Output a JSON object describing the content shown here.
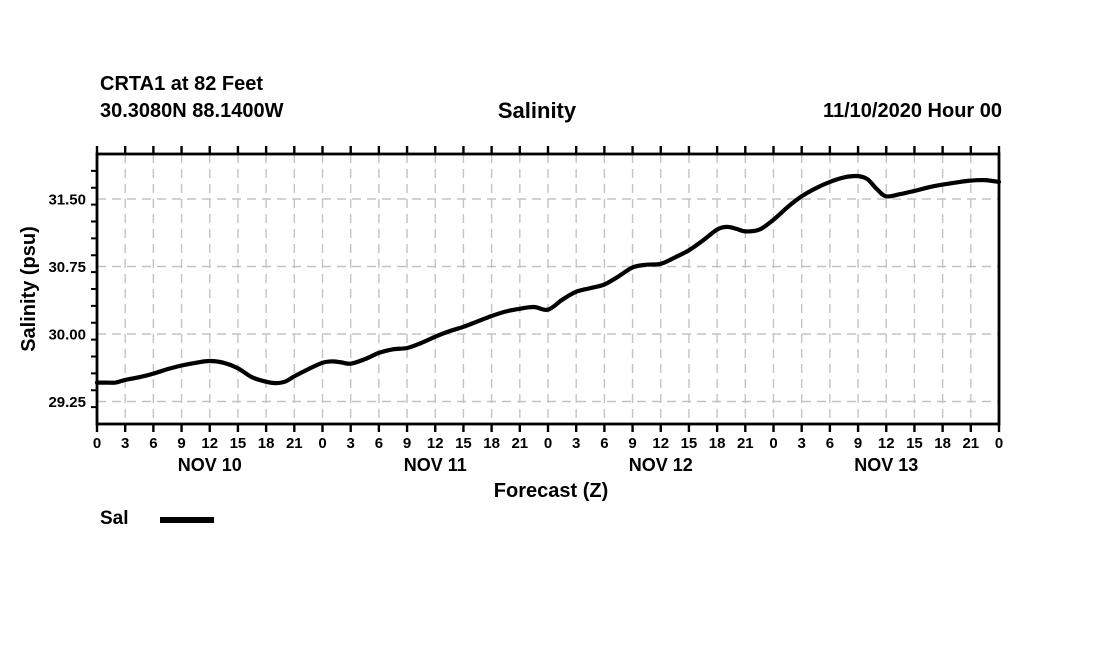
{
  "header": {
    "station_line1": "CRTA1 at 82 Feet",
    "station_line2": "30.3080N 88.1400W",
    "title": "Salinity",
    "run_info": "11/10/2020 Hour 00"
  },
  "colors": {
    "series": "#000000",
    "grid": "#c3c3c3",
    "axis": "#000000",
    "background": "#ffffff"
  },
  "chart_data": {
    "type": "line",
    "title": "Salinity",
    "xlabel": "Forecast (Z)",
    "ylabel": "Salinity (psu)",
    "ylim": [
      29.0,
      32.0
    ],
    "xlim_hours": [
      0,
      96
    ],
    "grid": true,
    "legend_position": "bottom-left",
    "y_major_ticks": [
      {
        "value": 29.25,
        "label": "29.25"
      },
      {
        "value": 30.0,
        "label": "30.00"
      },
      {
        "value": 30.75,
        "label": "30.75"
      },
      {
        "value": 31.5,
        "label": "31.50"
      }
    ],
    "y_minor_step": 0.1875,
    "x_tick_step_hours": 3,
    "x_hour_label_modulo": 24,
    "day_labels": [
      {
        "label": "NOV 10",
        "hour": 12
      },
      {
        "label": "NOV 11",
        "hour": 36
      },
      {
        "label": "NOV 12",
        "hour": 60
      },
      {
        "label": "NOV 13",
        "hour": 84
      }
    ],
    "legend": [
      {
        "label": "Sal",
        "color": "#000000"
      }
    ],
    "series": [
      {
        "name": "Sal",
        "color": "#000000",
        "points": [
          [
            0,
            29.46
          ],
          [
            1,
            29.46
          ],
          [
            2,
            29.46
          ],
          [
            3,
            29.49
          ],
          [
            4.5,
            29.52
          ],
          [
            6,
            29.56
          ],
          [
            7.5,
            29.61
          ],
          [
            9,
            29.65
          ],
          [
            10.5,
            29.68
          ],
          [
            12,
            29.7
          ],
          [
            13.5,
            29.68
          ],
          [
            15,
            29.62
          ],
          [
            16.5,
            29.52
          ],
          [
            18,
            29.47
          ],
          [
            19,
            29.455
          ],
          [
            20,
            29.47
          ],
          [
            21,
            29.53
          ],
          [
            22.5,
            29.61
          ],
          [
            24,
            29.68
          ],
          [
            25,
            29.695
          ],
          [
            26,
            29.685
          ],
          [
            27,
            29.67
          ],
          [
            28.5,
            29.72
          ],
          [
            30,
            29.79
          ],
          [
            31.5,
            29.83
          ],
          [
            33,
            29.845
          ],
          [
            34.5,
            29.9
          ],
          [
            36,
            29.97
          ],
          [
            37.5,
            30.03
          ],
          [
            39,
            30.08
          ],
          [
            40.5,
            30.14
          ],
          [
            42,
            30.2
          ],
          [
            43.5,
            30.25
          ],
          [
            45,
            30.28
          ],
          [
            46.5,
            30.3
          ],
          [
            48,
            30.27
          ],
          [
            49.5,
            30.38
          ],
          [
            51,
            30.47
          ],
          [
            52.5,
            30.51
          ],
          [
            54,
            30.55
          ],
          [
            55.5,
            30.64
          ],
          [
            57,
            30.74
          ],
          [
            58.5,
            30.77
          ],
          [
            60,
            30.78
          ],
          [
            61.5,
            30.85
          ],
          [
            63,
            30.93
          ],
          [
            64.5,
            31.04
          ],
          [
            66,
            31.16
          ],
          [
            67,
            31.19
          ],
          [
            68,
            31.17
          ],
          [
            69,
            31.14
          ],
          [
            70.5,
            31.16
          ],
          [
            72,
            31.27
          ],
          [
            73.5,
            31.41
          ],
          [
            75,
            31.53
          ],
          [
            76.5,
            31.62
          ],
          [
            78,
            31.69
          ],
          [
            79.5,
            31.74
          ],
          [
            81,
            31.755
          ],
          [
            82,
            31.72
          ],
          [
            83,
            31.61
          ],
          [
            84,
            31.53
          ],
          [
            85.5,
            31.555
          ],
          [
            87,
            31.59
          ],
          [
            88.5,
            31.63
          ],
          [
            90,
            31.66
          ],
          [
            91.5,
            31.685
          ],
          [
            93,
            31.705
          ],
          [
            94.5,
            31.71
          ],
          [
            96,
            31.69
          ]
        ]
      }
    ]
  }
}
